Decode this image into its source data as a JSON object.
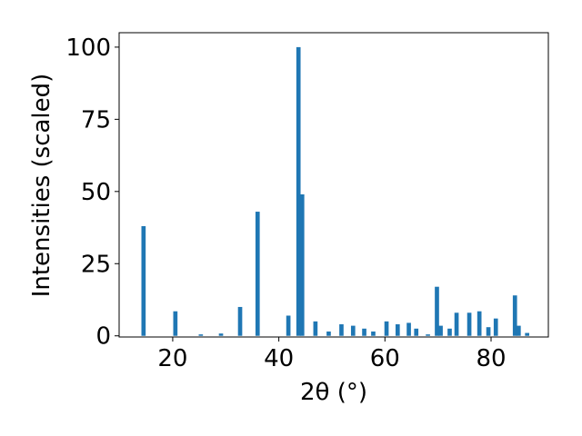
{
  "chart_data": {
    "type": "bar",
    "x_label": "2θ (°)",
    "y_label": "Intensities (scaled)",
    "color": "#1f77b4",
    "x": [
      14.5,
      20.5,
      25.3,
      29.1,
      32.7,
      36.0,
      41.8,
      43.7,
      44.4,
      46.9,
      49.4,
      51.8,
      54.0,
      56.1,
      57.8,
      60.3,
      62.4,
      64.5,
      65.9,
      68.1,
      69.8,
      70.5,
      72.2,
      73.5,
      75.9,
      77.8,
      79.5,
      80.9,
      84.5,
      85.2,
      86.8
    ],
    "values": [
      38,
      8.5,
      0.5,
      0.8,
      10,
      43,
      7,
      100,
      49,
      5,
      1.5,
      4,
      3.5,
      2.5,
      1.5,
      5,
      4,
      4.5,
      2.5,
      0.5,
      17,
      3.5,
      2.5,
      8,
      8,
      8.5,
      3,
      6,
      14,
      3.5,
      1
    ],
    "xlim": [
      9.9,
      90.8
    ],
    "xticks": [
      20,
      40,
      60,
      80
    ],
    "ylim": [
      -0.4,
      105
    ],
    "yticks": [
      0,
      25,
      50,
      75,
      100
    ]
  }
}
